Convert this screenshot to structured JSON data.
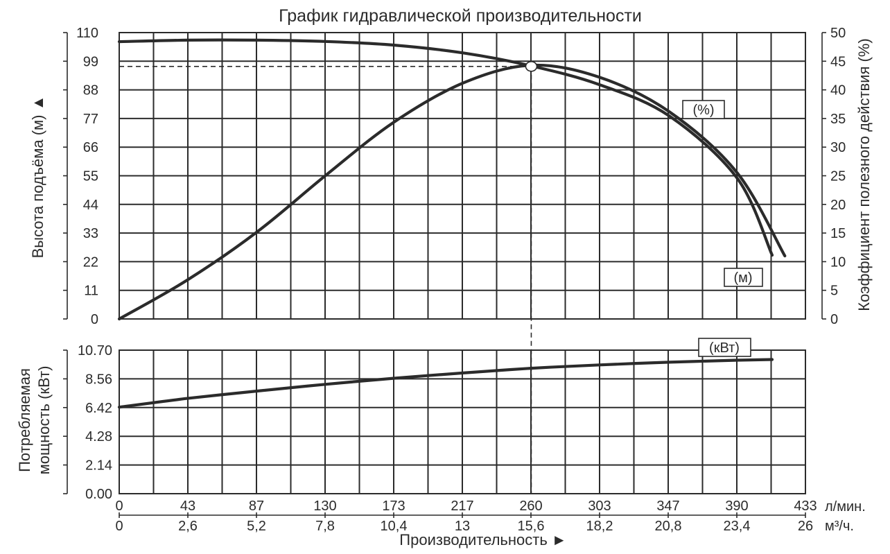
{
  "chart_data": [
    {
      "type": "line",
      "title": "График гидравлической производительности",
      "xlabel": "Производительность ►",
      "x_ticks_lpm": [
        "0",
        "43",
        "87",
        "130",
        "173",
        "217",
        "260",
        "303",
        "347",
        "390",
        "433"
      ],
      "x_ticks_m3h": [
        "0",
        "2,6",
        "5,2",
        "7,8",
        "10,4",
        "13",
        "15,6",
        "18,2",
        "20,8",
        "23,4",
        "26"
      ],
      "x_unit_lpm": "л/мин.",
      "x_unit_m3h": "м³/ч.",
      "xlim": [
        0,
        433
      ],
      "ylabel": "Высота подъёма (м) ▲",
      "y_ticks": [
        "0",
        "11",
        "22",
        "33",
        "44",
        "55",
        "66",
        "77",
        "88",
        "99",
        "110"
      ],
      "ylim": [
        0,
        110
      ],
      "y2label": "Коэффициент полезного действия (%)",
      "y2_ticks": [
        "0",
        "5",
        "10",
        "15",
        "20",
        "25",
        "30",
        "35",
        "40",
        "45",
        "50"
      ],
      "y2lim": [
        0,
        50
      ],
      "grid": true,
      "series": [
        {
          "name": "(м)",
          "axis": "left",
          "x": [
            0,
            43,
            87,
            130,
            173,
            217,
            260,
            303,
            347,
            390,
            412
          ],
          "y": [
            106.5,
            107.1,
            107.1,
            106.6,
            105.2,
            102.2,
            97.2,
            90,
            78,
            54,
            24.5
          ]
        },
        {
          "name": "(%)",
          "axis": "right",
          "x": [
            0,
            43,
            87,
            130,
            173,
            217,
            260,
            303,
            347,
            390,
            420
          ],
          "y": [
            0,
            6.8,
            15.2,
            25,
            34.3,
            41.2,
            44.3,
            42.2,
            36.2,
            25.5,
            11
          ]
        }
      ],
      "operating_point": {
        "x": 260,
        "y": 97,
        "annotation": ""
      }
    },
    {
      "type": "line",
      "ylabel_line1": "Потребляемая",
      "ylabel_line2": "мощность (кВт)",
      "y_ticks": [
        "0.00",
        "2.14",
        "4.28",
        "6.42",
        "8.56",
        "10.70"
      ],
      "ylim": [
        0,
        10.7
      ],
      "xlim": [
        0,
        433
      ],
      "grid": true,
      "series": [
        {
          "name": "(кВт)",
          "x": [
            0,
            43,
            87,
            130,
            173,
            217,
            260,
            303,
            347,
            390,
            412
          ],
          "y": [
            6.45,
            7.1,
            7.65,
            8.15,
            8.6,
            9.0,
            9.35,
            9.6,
            9.8,
            9.95,
            10.0
          ]
        }
      ]
    }
  ]
}
